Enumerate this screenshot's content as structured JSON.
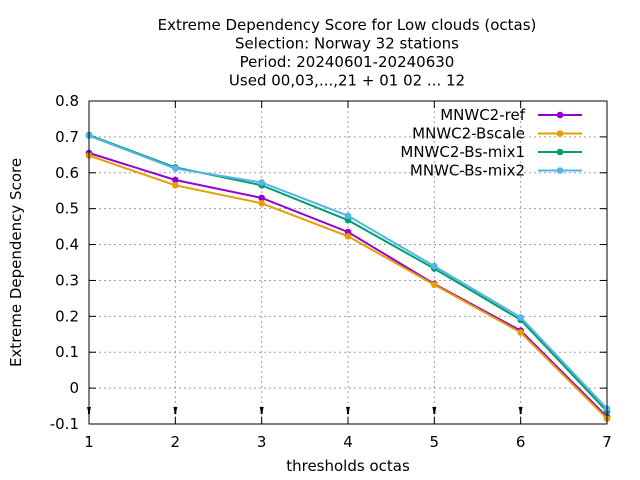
{
  "chart_data": {
    "type": "line",
    "title_lines": [
      "Extreme Dependency Score  for Low clouds (octas)",
      "Selection: Norway     32 stations",
      "Period: 20240601-20240630",
      "Used 00,03,...,21 + 01 02 ... 12"
    ],
    "xlabel": "thresholds octas",
    "ylabel": "Extreme Dependency Score",
    "x": [
      1,
      2,
      3,
      4,
      5,
      6,
      7
    ],
    "xlim": [
      1,
      7
    ],
    "ylim": [
      -0.1,
      0.8
    ],
    "xticks": [
      1,
      2,
      3,
      4,
      5,
      6,
      7
    ],
    "yticks": [
      -0.1,
      0,
      0.1,
      0.2,
      0.3,
      0.4,
      0.5,
      0.6,
      0.7,
      0.8
    ],
    "grid": true,
    "legend_position": "top-right",
    "series": [
      {
        "name": "MNWC2-ref",
        "color": "#9400d3",
        "values": [
          0.655,
          0.58,
          0.53,
          0.435,
          0.29,
          0.16,
          -0.08
        ]
      },
      {
        "name": "MNWC2-Bscale",
        "color": "#e69f00",
        "values": [
          0.648,
          0.565,
          0.515,
          0.423,
          0.288,
          0.155,
          -0.085
        ]
      },
      {
        "name": "MNWC2-Bs-mix1",
        "color": "#009e73",
        "values": [
          0.705,
          0.615,
          0.565,
          0.468,
          0.333,
          0.19,
          -0.065
        ]
      },
      {
        "name": "MNWC-Bs-mix2",
        "color": "#56b4e9",
        "values": [
          0.703,
          0.612,
          0.573,
          0.48,
          0.34,
          0.197,
          -0.057
        ]
      }
    ]
  }
}
